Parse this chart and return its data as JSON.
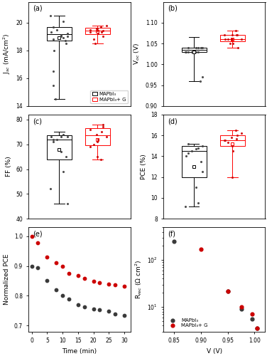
{
  "panel_a_label": "(a)",
  "panel_b_label": "(b)",
  "panel_c_label": "(c)",
  "panel_d_label": "(d)",
  "panel_e_label": "(e)",
  "panel_f_label": "(f)",
  "box_black_color": "black",
  "box_red_color": "red",
  "scatter_black_color": "#3a3a3a",
  "scatter_red_color": "#cc0000",
  "legend_label_black": "MAPbI₃",
  "legend_label_red": "MAPbI₃+ G",
  "panel_a_ylabel": "J$_{sc}$ (mA/cm$^2$)",
  "panel_a_ylim": [
    14,
    21.5
  ],
  "panel_a_yticks": [
    14,
    16,
    18,
    20
  ],
  "panel_a_black_data": [
    19.5,
    19.2,
    18.9,
    19.0,
    19.7,
    18.8,
    19.3,
    18.5,
    19.1,
    20.1,
    20.5,
    19.0,
    18.7,
    18.0,
    16.5,
    15.5,
    14.5
  ],
  "panel_a_red_data": [
    19.5,
    19.4,
    19.6,
    19.3,
    19.8,
    19.2,
    19.4,
    19.3,
    18.8,
    19.6,
    19.7,
    19.0,
    18.5
  ],
  "panel_a_black_box": {
    "q1": 18.7,
    "median": 19.15,
    "q3": 19.7,
    "whisker_low": 14.5,
    "whisker_high": 20.5,
    "mean": 18.9
  },
  "panel_a_red_box": {
    "q1": 19.15,
    "median": 19.4,
    "q3": 19.65,
    "whisker_low": 18.5,
    "whisker_high": 19.8,
    "mean": 19.38
  },
  "panel_b_ylabel": "V$_{oc}$ (V)",
  "panel_b_ylim": [
    0.9,
    1.15
  ],
  "panel_b_yticks": [
    0.9,
    0.95,
    1.0,
    1.05,
    1.1
  ],
  "panel_b_black_data": [
    1.03,
    1.04,
    1.03,
    1.04,
    1.03,
    1.04,
    1.03,
    1.04,
    1.03,
    1.04,
    1.03,
    0.97,
    0.96
  ],
  "panel_b_red_data": [
    1.06,
    1.07,
    1.06,
    1.07,
    1.06,
    1.05,
    1.06,
    1.07,
    1.06,
    1.07,
    1.08,
    1.04,
    1.05
  ],
  "panel_b_black_box": {
    "q1": 1.03,
    "median": 1.035,
    "q3": 1.04,
    "whisker_low": 0.96,
    "whisker_high": 1.065,
    "mean": 1.03
  },
  "panel_b_red_box": {
    "q1": 1.055,
    "median": 1.06,
    "q3": 1.07,
    "whisker_low": 1.04,
    "whisker_high": 1.08,
    "mean": 1.06
  },
  "panel_c_ylabel": "FF (%)",
  "panel_c_ylim": [
    40,
    82
  ],
  "panel_c_yticks": [
    40,
    50,
    60,
    70,
    80
  ],
  "panel_c_black_data": [
    72,
    73,
    74,
    73,
    72,
    71,
    73,
    65,
    67,
    59,
    52,
    46
  ],
  "panel_c_red_data": [
    76,
    77,
    74,
    75,
    73,
    72,
    71,
    69,
    70,
    65,
    64,
    78
  ],
  "panel_c_black_box": {
    "q1": 64,
    "median": 72,
    "q3": 73.5,
    "whisker_low": 46,
    "whisker_high": 75,
    "mean": 68
  },
  "panel_c_red_box": {
    "q1": 69.5,
    "median": 73.5,
    "q3": 76.5,
    "whisker_low": 64,
    "whisker_high": 78,
    "mean": 72
  },
  "panel_d_ylabel": "PCE (%)",
  "panel_d_ylim": [
    8,
    18
  ],
  "panel_d_yticks": [
    8,
    10,
    12,
    14,
    16,
    18
  ],
  "panel_d_black_data": [
    14.5,
    15.0,
    14.8,
    14.7,
    15.2,
    14.3,
    14.0,
    13.5,
    11.0,
    9.5,
    9.2,
    12.5
  ],
  "panel_d_red_data": [
    15.5,
    16.0,
    15.8,
    15.7,
    16.2,
    14.5,
    15.0,
    15.5,
    15.3,
    12.0,
    16.5
  ],
  "panel_d_black_box": {
    "q1": 12.0,
    "median": 14.5,
    "q3": 15.0,
    "whisker_low": 9.2,
    "whisker_high": 15.2,
    "mean": 13.0
  },
  "panel_d_red_box": {
    "q1": 15.0,
    "median": 15.5,
    "q3": 16.0,
    "whisker_low": 12.0,
    "whisker_high": 16.5,
    "mean": 15.2
  },
  "panel_e_ylabel": "Normalized PCE",
  "panel_e_xlabel": "Time (min)",
  "panel_e_xlim": [
    -1,
    32
  ],
  "panel_e_ylim": [
    0.68,
    1.03
  ],
  "panel_e_yticks": [
    0.7,
    0.8,
    0.9,
    1.0
  ],
  "panel_e_xticks": [
    0,
    5,
    10,
    15,
    20,
    25,
    30
  ],
  "panel_e_black_time": [
    0,
    2,
    5,
    8,
    10,
    12,
    15,
    17,
    20,
    22,
    25,
    27,
    30
  ],
  "panel_e_black_pce": [
    0.9,
    0.895,
    0.85,
    0.82,
    0.8,
    0.79,
    0.77,
    0.763,
    0.756,
    0.752,
    0.748,
    0.74,
    0.733
  ],
  "panel_e_red_time": [
    0,
    2,
    5,
    8,
    10,
    12,
    15,
    17,
    20,
    22,
    25,
    27,
    30
  ],
  "panel_e_red_pce": [
    1.0,
    0.978,
    0.93,
    0.91,
    0.9,
    0.875,
    0.868,
    0.858,
    0.848,
    0.843,
    0.84,
    0.836,
    0.832
  ],
  "panel_f_ylabel": "R$_{rec}$ (Ω cm$^2$)",
  "panel_f_xlabel": "V (V)",
  "panel_f_xlim": [
    0.83,
    1.02
  ],
  "panel_f_ylim_log": [
    3,
    500
  ],
  "panel_f_xticks": [
    0.85,
    0.9,
    0.95,
    1.0
  ],
  "panel_f_black_v": [
    0.85,
    0.95,
    0.975,
    0.995,
    1.005
  ],
  "panel_f_black_r": [
    250,
    22,
    9,
    5.5,
    3.5
  ],
  "panel_f_red_v": [
    0.9,
    0.95,
    0.975,
    0.995,
    1.005
  ],
  "panel_f_red_r": [
    170,
    22,
    10,
    7,
    3.5
  ]
}
